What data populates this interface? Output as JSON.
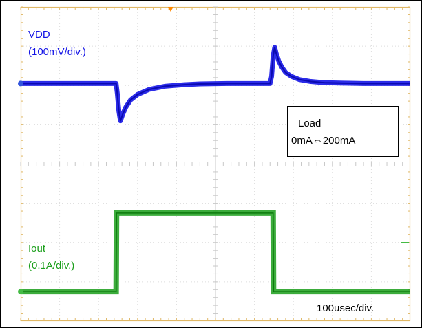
{
  "chart_data": {
    "type": "line",
    "x_units_label": "100usec/div.",
    "time_per_div_us": 100,
    "x_divisions": 10,
    "y_divisions": 8,
    "grid": true,
    "series": [
      {
        "name": "VDD",
        "scale_label": "(100mV/div.)",
        "color": "#1414e6",
        "marker_color": "#3355dd",
        "x_us": [
          0,
          245,
          248,
          252,
          256,
          262,
          270,
          282,
          300,
          330,
          370,
          420,
          460,
          530,
          600,
          640,
          644,
          648,
          652,
          656,
          662,
          670,
          680,
          695,
          715,
          745,
          780,
          830,
          880,
          930,
          1000
        ],
        "y_mv": [
          0,
          0,
          -25,
          -70,
          -95,
          -78,
          -60,
          -42,
          -28,
          -15,
          -7,
          -3,
          -1,
          0,
          0,
          0,
          18,
          70,
          92,
          76,
          58,
          42,
          28,
          18,
          10,
          5,
          2,
          1,
          0,
          0,
          0
        ]
      },
      {
        "name": "Iout",
        "scale_label": "(0.1A/div.)",
        "color": "#1a9e1a",
        "marker_color": "#44bb44",
        "x_us": [
          0,
          245,
          246,
          648,
          649,
          1000
        ],
        "y_ma": [
          0,
          0,
          200,
          200,
          0,
          0
        ]
      }
    ],
    "annotation": {
      "line1": "Load",
      "line2": "0mA⇔200mA"
    },
    "trigger_color": "#ff8800"
  }
}
